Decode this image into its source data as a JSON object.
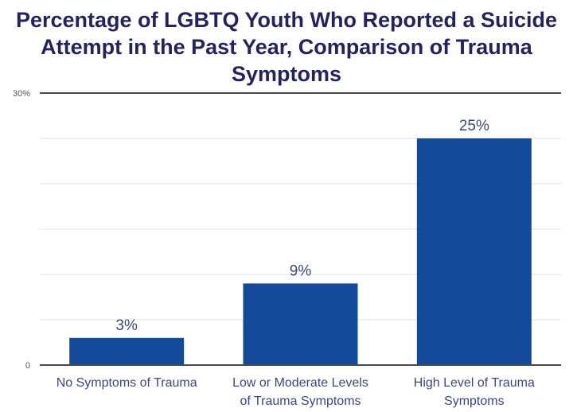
{
  "chart_data": {
    "type": "bar",
    "title": "Percentage of LGBTQ Youth Who Reported a Suicide Attempt in the Past Year, Comparison of Trauma Symptoms",
    "categories": [
      [
        "No Symptoms of Trauma"
      ],
      [
        "Low or Moderate Levels",
        "of Trauma Symptoms"
      ],
      [
        "High Level of Trauma",
        "Symptoms"
      ]
    ],
    "values": [
      3,
      9,
      25
    ],
    "data_labels": [
      "3%",
      "9%",
      "25%"
    ],
    "ylim": [
      0,
      30
    ],
    "y_ticks": [
      {
        "value": 0,
        "label": "0"
      },
      {
        "value": 30,
        "label": "30%"
      }
    ],
    "grid_step": 5,
    "grid": true,
    "colors": {
      "bar": "#134a9a",
      "title": "#24235e",
      "label": "#3a4880",
      "grid": "#e0e0e0",
      "axis": "#4a4a4a"
    }
  }
}
